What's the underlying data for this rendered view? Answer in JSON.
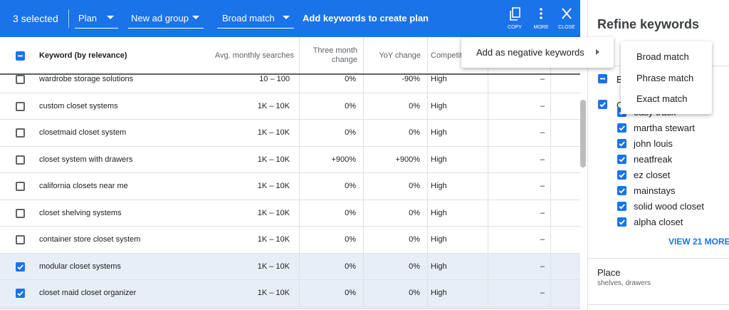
{
  "toolbar": {
    "selection": "3 selected",
    "dropdowns": [
      "Plan",
      "New ad group",
      "Broad match"
    ],
    "action": "Add keywords to create plan",
    "icons": [
      "COPY",
      "MORE",
      "CLOSE"
    ]
  },
  "table": {
    "headers": [
      "Keyword (by relevance)",
      "Avg. monthly searches",
      "Three month change",
      "YoY change",
      "Competition"
    ],
    "rows": [
      {
        "keyword": "wardrobe storage solutions",
        "searches": "10 – 100",
        "three_month": "0%",
        "yoy": "-90%",
        "competition": "High",
        "bid": "–",
        "checked": false
      },
      {
        "keyword": "custom closet systems",
        "searches": "1K – 10K",
        "three_month": "0%",
        "yoy": "0%",
        "competition": "High",
        "bid": "–",
        "checked": false
      },
      {
        "keyword": "closetmaid closet system",
        "searches": "1K – 10K",
        "three_month": "0%",
        "yoy": "0%",
        "competition": "High",
        "bid": "–",
        "checked": false
      },
      {
        "keyword": "closet system with drawers",
        "searches": "1K – 10K",
        "three_month": "+900%",
        "yoy": "+900%",
        "competition": "High",
        "bid": "–",
        "checked": false
      },
      {
        "keyword": "california closets near me",
        "searches": "1K – 10K",
        "three_month": "0%",
        "yoy": "0%",
        "competition": "High",
        "bid": "–",
        "checked": false
      },
      {
        "keyword": "closet shelving systems",
        "searches": "1K – 10K",
        "three_month": "0%",
        "yoy": "0%",
        "competition": "High",
        "bid": "–",
        "checked": false
      },
      {
        "keyword": "container store closet system",
        "searches": "1K – 10K",
        "three_month": "0%",
        "yoy": "0%",
        "competition": "High",
        "bid": "–",
        "checked": false
      },
      {
        "keyword": "modular closet systems",
        "searches": "1K – 10K",
        "three_month": "0%",
        "yoy": "0%",
        "competition": "High",
        "bid": "–",
        "checked": true
      },
      {
        "keyword": "closet maid closet organizer",
        "searches": "1K – 10K",
        "three_month": "0%",
        "yoy": "0%",
        "competition": "High",
        "bid": "–",
        "checked": true
      }
    ]
  },
  "context_menu": {
    "item": "Add as negative keywords",
    "submenu": [
      "Broad match",
      "Phrase match",
      "Exact match"
    ]
  },
  "refine_panel": {
    "title": "Refine keywords",
    "groups": [
      {
        "label": "B",
        "state": "partial"
      },
      {
        "label": "C",
        "state": "on",
        "items": [
          "easy track",
          "martha stewart",
          "john louis",
          "neatfreak",
          "ez closet",
          "mainstays",
          "solid wood closet",
          "alpha closet"
        ]
      }
    ],
    "view_more": "VIEW 21 MORE",
    "place": {
      "title": "Place",
      "subtitle": "shelves, drawers"
    }
  }
}
